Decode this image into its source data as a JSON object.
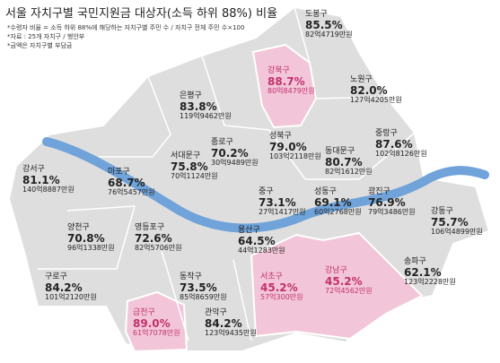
{
  "header": {
    "title": "서울 자치구별 국민지원금 대상자(소득 하위 88%) 비율",
    "notes": [
      "*수령자 비율 = 소득 하위 88%에 해당하는 자치구별 주민 수 / 자치구 전체 주민 수×100",
      "*자료 : 25개 자치구 / 행안부",
      "*금액은 자치구별 부담금"
    ]
  },
  "districts": [
    {
      "name": "도봉구",
      "rate": "85.5%",
      "amount": "82억4719만원"
    },
    {
      "name": "강북구",
      "rate": "88.7%",
      "amount": "80억8479만원"
    },
    {
      "name": "노원구",
      "rate": "82.0%",
      "amount": "127억4205만원"
    },
    {
      "name": "은평구",
      "rate": "83.8%",
      "amount": "119억9462만원"
    },
    {
      "name": "성북구",
      "rate": "79.0%",
      "amount": "103억2118만원"
    },
    {
      "name": "중랑구",
      "rate": "87.6%",
      "amount": "102억8126만원"
    },
    {
      "name": "종로구",
      "rate": "70.2%",
      "amount": "30억9489만원"
    },
    {
      "name": "서대문구",
      "rate": "75.8%",
      "amount": "70억1124만원"
    },
    {
      "name": "동대문구",
      "rate": "80.7%",
      "amount": "82억1612만원"
    },
    {
      "name": "강서구",
      "rate": "81.1%",
      "amount": "140억8887만원"
    },
    {
      "name": "마포구",
      "rate": "68.7%",
      "amount": "76억5457만원"
    },
    {
      "name": "중구",
      "rate": "73.1%",
      "amount": "27억1417만원"
    },
    {
      "name": "성동구",
      "rate": "69.1%",
      "amount": "60억2768만원"
    },
    {
      "name": "광진구",
      "rate": "76.9%",
      "amount": "79억3486만원"
    },
    {
      "name": "강동구",
      "rate": "75.7%",
      "amount": "106억4899만원"
    },
    {
      "name": "용산구",
      "rate": "64.5%",
      "amount": "44억1283만원"
    },
    {
      "name": "양천구",
      "rate": "70.8%",
      "amount": "96억1338만원"
    },
    {
      "name": "영등포구",
      "rate": "72.6%",
      "amount": "82억5706만원"
    },
    {
      "name": "송파구",
      "rate": "62.1%",
      "amount": "123억2228만원"
    },
    {
      "name": "구로구",
      "rate": "84.2%",
      "amount": "101억2120만원"
    },
    {
      "name": "동작구",
      "rate": "73.5%",
      "amount": "85억8659만원"
    },
    {
      "name": "서초구",
      "rate": "45.2%",
      "amount": "57억300만원"
    },
    {
      "name": "강남구",
      "rate": "45.2%",
      "amount": "72억4562만원"
    },
    {
      "name": "관악구",
      "rate": "84.2%",
      "amount": "123억9435만원"
    },
    {
      "name": "금천구",
      "rate": "89.0%",
      "amount": "61억7078만원"
    }
  ]
}
